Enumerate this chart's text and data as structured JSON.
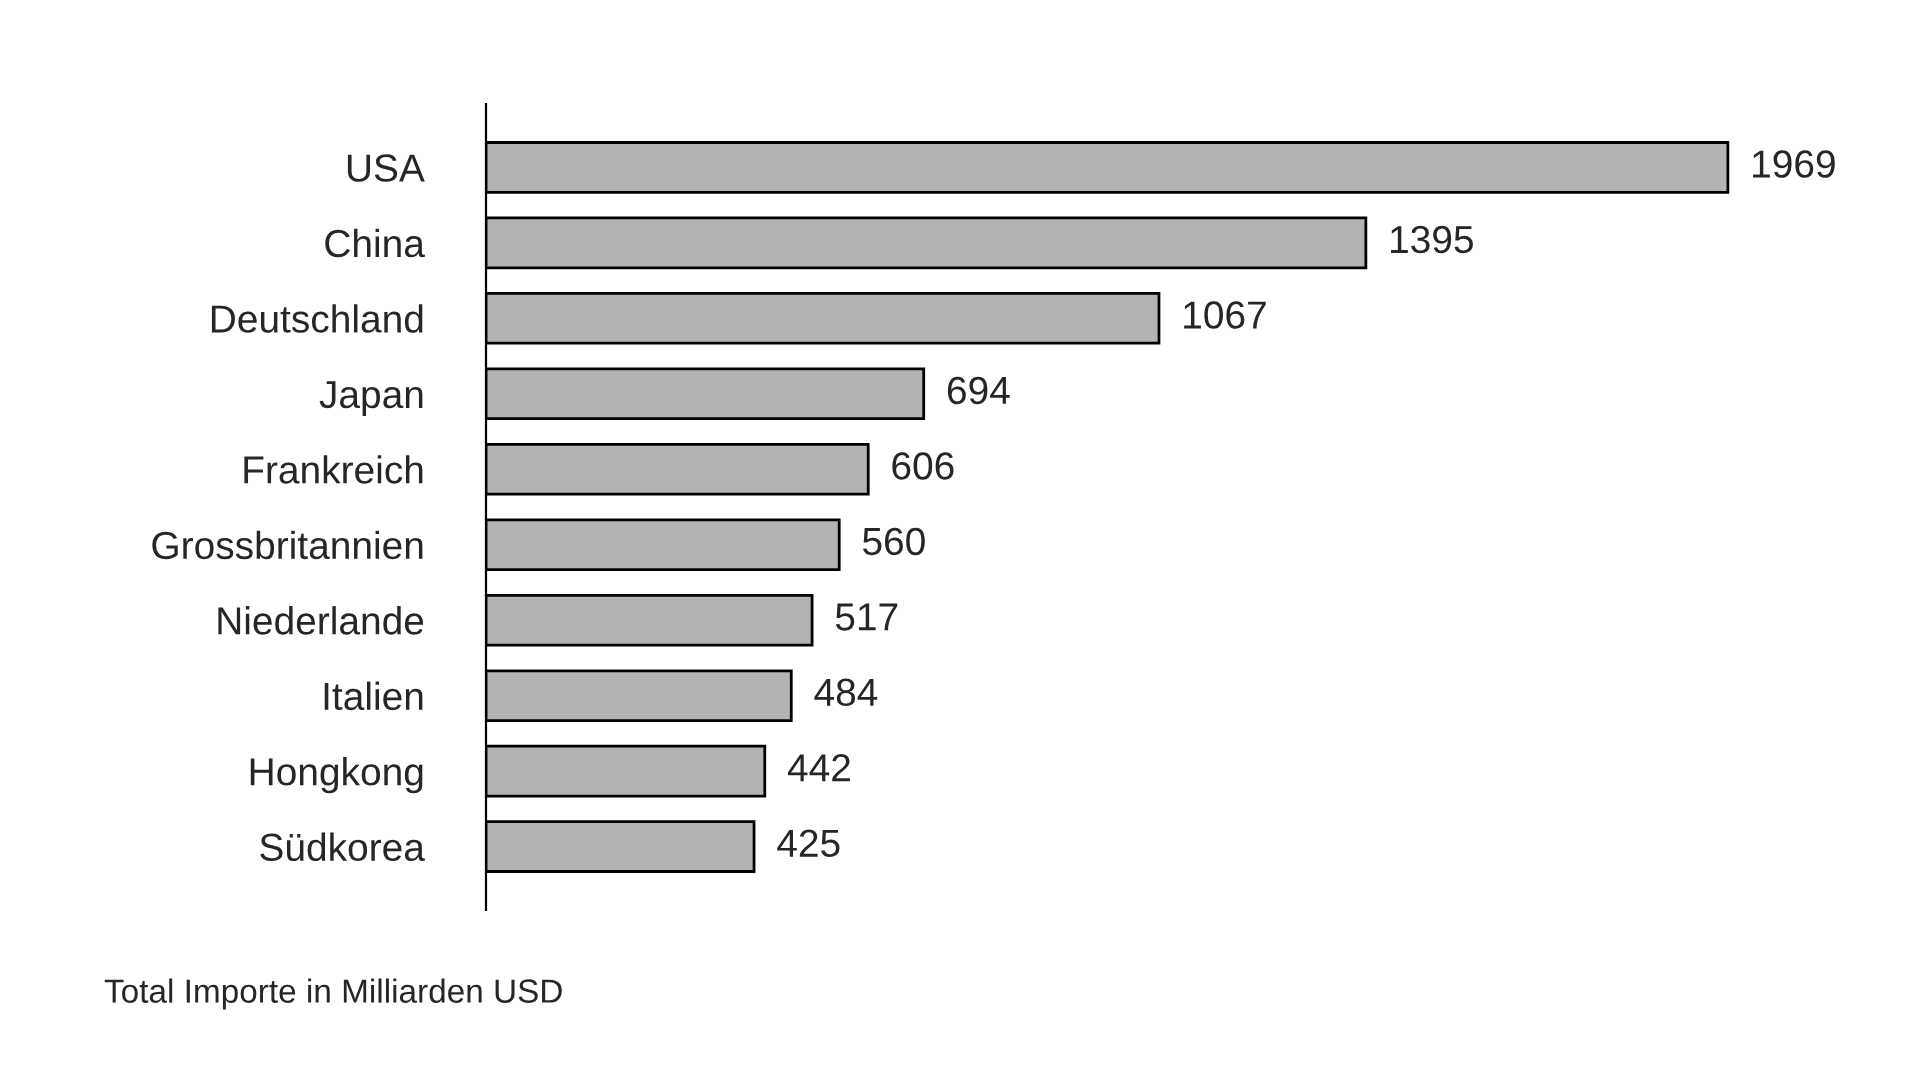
{
  "chart_data": {
    "type": "bar",
    "orientation": "horizontal",
    "categories": [
      "USA",
      "China",
      "Deutschland",
      "Japan",
      "Frankreich",
      "Grossbritannien",
      "Niederlande",
      "Italien",
      "Hongkong",
      "Südkorea"
    ],
    "values": [
      1969,
      1395,
      1067,
      694,
      606,
      560,
      517,
      484,
      442,
      425
    ],
    "color": "#b3b3b3",
    "data_labels": true,
    "grid": false,
    "legend": false,
    "annotations": [
      "Total Importe in Milliarden USD"
    ]
  }
}
